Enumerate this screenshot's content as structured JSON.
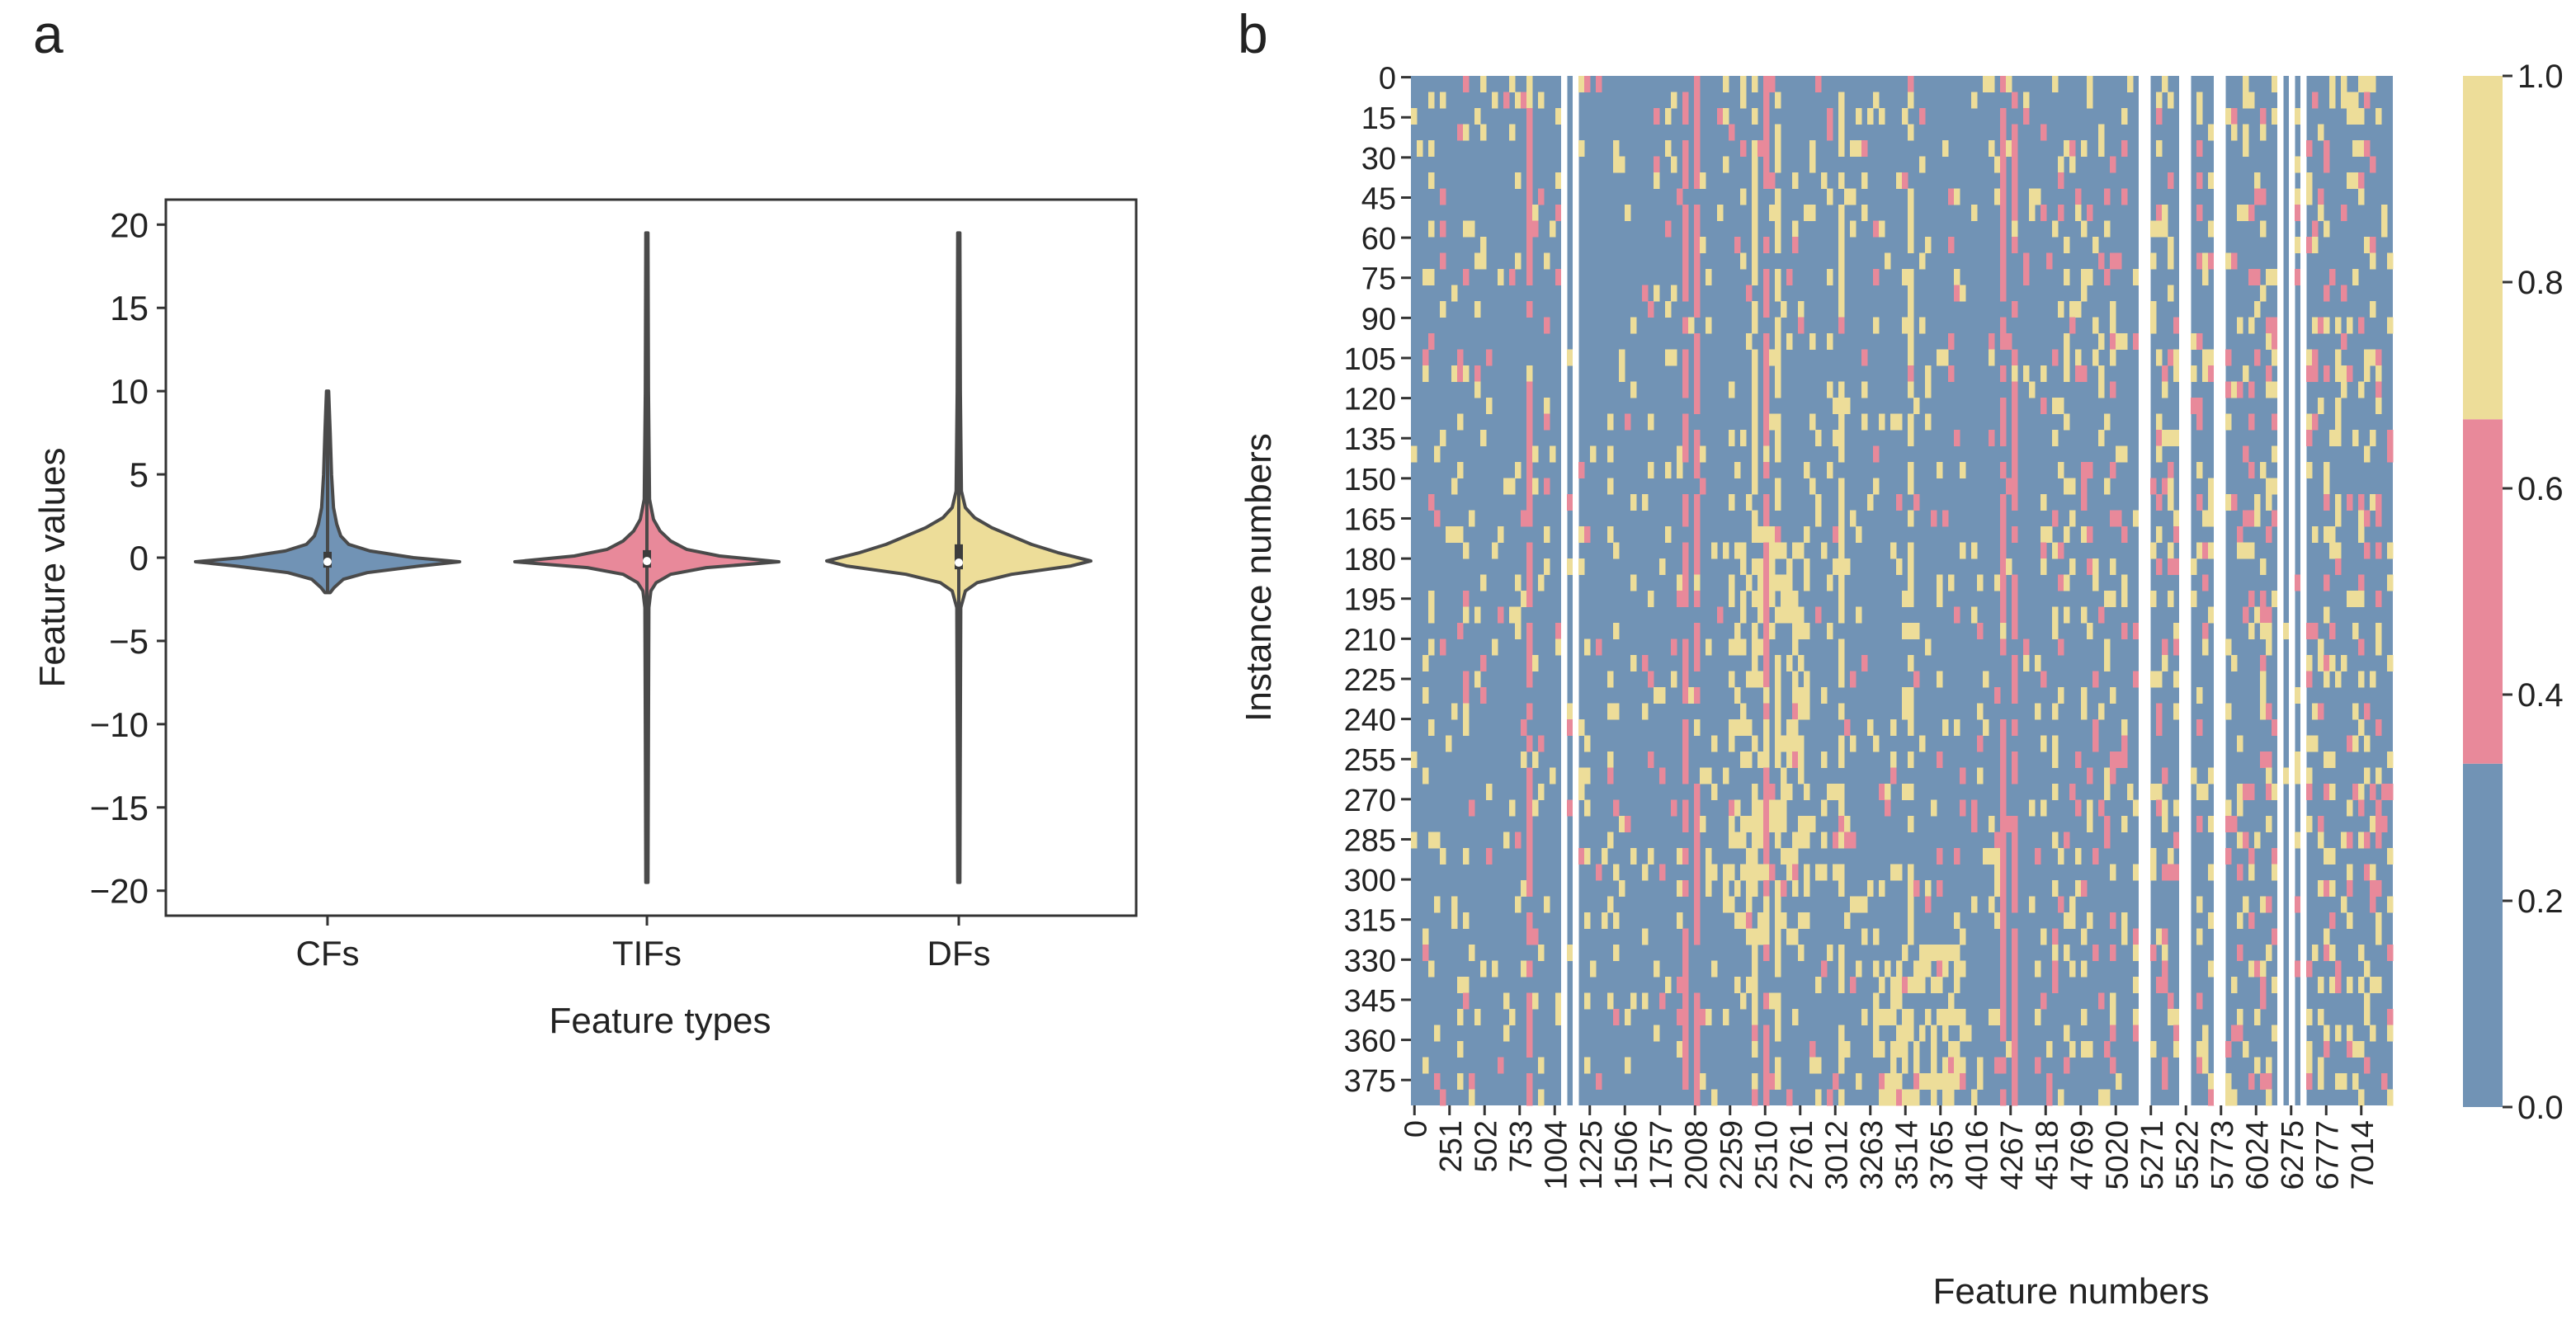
{
  "chart_data": [
    {
      "panel_label": "a",
      "type": "violin",
      "xlabel": "Feature types",
      "ylabel": "Feature values",
      "ylim": [
        -21.5,
        21.5
      ],
      "yticks": [
        20,
        15,
        10,
        5,
        0,
        -5,
        -10,
        -15,
        -20
      ],
      "ytick_labels": [
        "20",
        "15",
        "10",
        "5",
        "0",
        "−5",
        "−10",
        "−15",
        "−20"
      ],
      "categories": [
        "CFs",
        "TIFs",
        "DFs"
      ],
      "violins": [
        {
          "name": "CFs",
          "color": "#7193b5",
          "min": -2.1,
          "max": 10.0,
          "q1": -0.6,
          "median": -0.25,
          "q3": 0.35,
          "profile": [
            [
              -2.1,
              0.02
            ],
            [
              -1.8,
              0.05
            ],
            [
              -1.3,
              0.12
            ],
            [
              -0.9,
              0.3
            ],
            [
              -0.5,
              0.7
            ],
            [
              -0.25,
              1.0
            ],
            [
              0.0,
              0.65
            ],
            [
              0.4,
              0.32
            ],
            [
              0.8,
              0.16
            ],
            [
              1.3,
              0.1
            ],
            [
              2.0,
              0.07
            ],
            [
              3.0,
              0.045
            ],
            [
              5.0,
              0.03
            ],
            [
              7.5,
              0.02
            ],
            [
              10.0,
              0.008
            ]
          ]
        },
        {
          "name": "TIFs",
          "color": "#e8899a",
          "min": -19.5,
          "max": 19.5,
          "q1": -0.6,
          "median": -0.2,
          "q3": 0.45,
          "profile": [
            [
              -19.5,
              0.008
            ],
            [
              -10,
              0.012
            ],
            [
              -3.0,
              0.015
            ],
            [
              -2.0,
              0.03
            ],
            [
              -1.5,
              0.07
            ],
            [
              -1.0,
              0.18
            ],
            [
              -0.6,
              0.45
            ],
            [
              -0.25,
              1.0
            ],
            [
              0.1,
              0.55
            ],
            [
              0.5,
              0.3
            ],
            [
              1.0,
              0.18
            ],
            [
              1.6,
              0.1
            ],
            [
              2.3,
              0.05
            ],
            [
              3.5,
              0.02
            ],
            [
              10,
              0.012
            ],
            [
              19.5,
              0.008
            ]
          ]
        },
        {
          "name": "DFs",
          "color": "#eddd99",
          "min": -19.5,
          "max": 19.5,
          "q1": -0.7,
          "median": -0.3,
          "q3": 0.8,
          "profile": [
            [
              -19.5,
              0.008
            ],
            [
              -10,
              0.012
            ],
            [
              -3.0,
              0.015
            ],
            [
              -2.0,
              0.05
            ],
            [
              -1.5,
              0.14
            ],
            [
              -1.0,
              0.4
            ],
            [
              -0.5,
              0.85
            ],
            [
              -0.2,
              1.0
            ],
            [
              0.3,
              0.75
            ],
            [
              0.8,
              0.55
            ],
            [
              1.3,
              0.4
            ],
            [
              1.8,
              0.25
            ],
            [
              2.4,
              0.12
            ],
            [
              3.0,
              0.05
            ],
            [
              4.0,
              0.02
            ],
            [
              10,
              0.012
            ],
            [
              19.5,
              0.008
            ]
          ]
        }
      ]
    },
    {
      "panel_label": "b",
      "type": "heatmap",
      "xlabel": "Feature numbers",
      "ylabel": "Instance numbers",
      "x_range": [
        0,
        7237
      ],
      "y_range": [
        0,
        385
      ],
      "xtick_labels": [
        "0",
        "251",
        "502",
        "753",
        "1004",
        "1225",
        "1506",
        "1757",
        "2008",
        "2259",
        "2510",
        "2761",
        "3012",
        "3263",
        "3514",
        "3765",
        "4016",
        "4267",
        "4518",
        "4769",
        "5020",
        "5271",
        "5522",
        "5773",
        "6024",
        "6275",
        "6777",
        "7014"
      ],
      "ytick_labels": [
        "0",
        "15",
        "30",
        "45",
        "60",
        "75",
        "90",
        "105",
        "120",
        "135",
        "150",
        "165",
        "180",
        "195",
        "210",
        "225",
        "240",
        "255",
        "270",
        "285",
        "300",
        "315",
        "330",
        "345",
        "360",
        "375"
      ],
      "colorbar": {
        "ticks": [
          "1.0",
          "0.8",
          "0.6",
          "0.4",
          "0.2",
          "0.0"
        ],
        "colors": [
          "#eddd99",
          "#e8899a",
          "#7193b5"
        ],
        "bounds": [
          0,
          0.333,
          0.667,
          1.0
        ]
      }
    }
  ]
}
